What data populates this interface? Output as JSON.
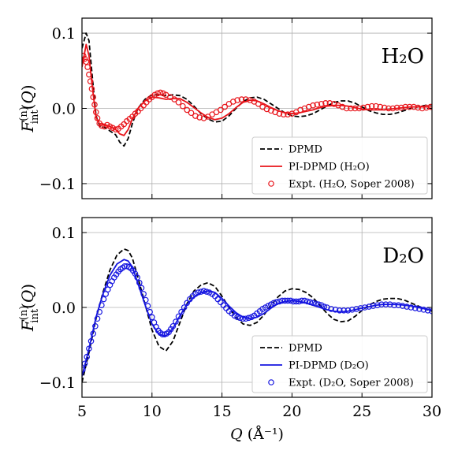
{
  "chart_data": [
    {
      "type": "line",
      "panel_label": "H₂O",
      "ylabel": "F_int^(n)(Q)",
      "xlabel": "",
      "xlim": [
        5,
        30
      ],
      "ylim": [
        -0.12,
        0.12
      ],
      "xticks": [
        "5",
        "10",
        "15",
        "20",
        "25",
        "30"
      ],
      "yticks": [
        "0.1",
        "0.0",
        "−0.1"
      ],
      "grid": true,
      "legend_position": "lower-right",
      "colors": {
        "sim": "#e8141a",
        "dpmd": "#000000"
      },
      "series": [
        {
          "name": "DPMD",
          "style": "dashed",
          "x": [
            5.0,
            5.3,
            5.5,
            5.7,
            6.0,
            6.3,
            6.6,
            7.0,
            7.4,
            7.7,
            8.0,
            8.3,
            8.6,
            9.0,
            9.5,
            10.0,
            10.5,
            11.0,
            11.5,
            12.0,
            12.5,
            13.0,
            13.5,
            14.0,
            14.5,
            15.0,
            15.5,
            16.0,
            16.5,
            17.0,
            17.5,
            18.0,
            18.5,
            19.0,
            19.5,
            20.0,
            20.5,
            21.0,
            21.5,
            22.0,
            22.5,
            23.0,
            23.5,
            24.0,
            24.5,
            25.0,
            25.5,
            26.0,
            26.5,
            27.0,
            27.5,
            28.0,
            28.5,
            29.0,
            29.5,
            30.0
          ],
          "y": [
            0.08,
            0.1,
            0.09,
            0.05,
            -0.01,
            -0.025,
            -0.025,
            -0.03,
            -0.035,
            -0.045,
            -0.05,
            -0.04,
            -0.02,
            0.0,
            0.012,
            0.018,
            0.018,
            0.017,
            0.018,
            0.017,
            0.012,
            0.003,
            -0.007,
            -0.014,
            -0.018,
            -0.017,
            -0.01,
            0.0,
            0.009,
            0.014,
            0.015,
            0.012,
            0.006,
            0.0,
            -0.006,
            -0.01,
            -0.011,
            -0.01,
            -0.007,
            -0.002,
            0.003,
            0.008,
            0.01,
            0.01,
            0.007,
            0.002,
            -0.003,
            -0.006,
            -0.008,
            -0.008,
            -0.006,
            -0.003,
            0.0,
            0.002,
            0.004,
            0.005
          ]
        },
        {
          "name": "PI-DPMD (H₂O)",
          "style": "solid",
          "x": [
            5.0,
            5.3,
            5.5,
            5.7,
            6.0,
            6.3,
            6.6,
            7.0,
            7.4,
            7.7,
            8.0,
            8.3,
            8.6,
            9.0,
            9.5,
            10.0,
            10.5,
            11.0,
            11.5,
            12.0,
            12.5,
            13.0,
            13.5,
            14.0,
            14.5,
            15.0,
            15.5,
            16.0,
            16.5,
            17.0,
            17.5,
            18.0,
            18.5,
            19.0,
            19.5,
            20.0,
            20.5,
            21.0,
            21.5,
            22.0,
            22.5,
            23.0,
            23.5,
            24.0,
            24.5,
            25.0,
            25.5,
            26.0,
            26.5,
            27.0,
            27.5,
            28.0,
            28.5,
            29.0,
            29.5,
            30.0
          ],
          "y": [
            0.055,
            0.085,
            0.07,
            0.035,
            -0.012,
            -0.022,
            -0.022,
            -0.024,
            -0.028,
            -0.034,
            -0.036,
            -0.028,
            -0.014,
            0.0,
            0.01,
            0.015,
            0.014,
            0.012,
            0.013,
            0.013,
            0.008,
            0.001,
            -0.006,
            -0.012,
            -0.015,
            -0.013,
            -0.007,
            0.001,
            0.008,
            0.011,
            0.01,
            0.006,
            0.001,
            -0.003,
            -0.006,
            -0.007,
            -0.006,
            -0.004,
            -0.002,
            0.001,
            0.003,
            0.004,
            0.004,
            0.003,
            0.001,
            -0.001,
            -0.002,
            -0.002,
            -0.002,
            -0.001,
            0.0,
            0.001,
            0.002,
            0.002,
            0.002,
            0.002
          ]
        },
        {
          "name": "Expt. (H₂O, Soper 2008)",
          "style": "circles",
          "x": [
            5.1,
            5.2,
            5.3,
            5.4,
            5.5,
            5.6,
            5.7,
            5.8,
            5.9,
            6.0,
            6.1,
            6.25,
            6.4,
            6.6,
            6.8,
            7.0,
            7.2,
            7.4,
            7.6,
            7.8,
            8.0,
            8.2,
            8.4,
            8.6,
            8.8,
            9.0,
            9.2,
            9.4,
            9.6,
            9.8,
            10.0,
            10.2,
            10.4,
            10.6,
            10.8,
            11.0,
            11.3,
            11.6,
            11.9,
            12.2,
            12.5,
            12.8,
            13.1,
            13.4,
            13.7,
            14.0,
            14.3,
            14.6,
            14.9,
            15.2,
            15.5,
            15.8,
            16.1,
            16.4,
            16.7,
            17.0,
            17.3,
            17.6,
            17.9,
            18.2,
            18.5,
            18.8,
            19.1,
            19.4,
            19.7,
            20.0,
            20.3,
            20.6,
            20.9,
            21.2,
            21.5,
            21.8,
            22.1,
            22.4,
            22.7,
            23.0,
            23.3,
            23.6,
            23.9,
            24.2,
            24.5,
            24.8,
            25.1,
            25.4,
            25.7,
            26.0,
            26.3,
            26.6,
            26.9,
            27.2,
            27.5,
            27.8,
            28.1,
            28.4,
            28.7,
            29.0,
            29.3,
            29.6,
            29.9
          ],
          "y": [
            0.07,
            0.066,
            0.062,
            0.055,
            0.045,
            0.036,
            0.026,
            0.015,
            0.005,
            -0.005,
            -0.013,
            -0.02,
            -0.023,
            -0.024,
            -0.022,
            -0.024,
            -0.026,
            -0.028,
            -0.027,
            -0.024,
            -0.021,
            -0.017,
            -0.014,
            -0.011,
            -0.007,
            -0.004,
            0.0,
            0.004,
            0.008,
            0.012,
            0.015,
            0.018,
            0.02,
            0.021,
            0.02,
            0.018,
            0.015,
            0.012,
            0.008,
            0.003,
            -0.002,
            -0.006,
            -0.01,
            -0.012,
            -0.013,
            -0.011,
            -0.008,
            -0.005,
            -0.002,
            0.002,
            0.006,
            0.009,
            0.011,
            0.012,
            0.012,
            0.011,
            0.009,
            0.006,
            0.002,
            -0.001,
            -0.003,
            -0.005,
            -0.007,
            -0.008,
            -0.008,
            -0.007,
            -0.005,
            -0.002,
            0.0,
            0.002,
            0.004,
            0.005,
            0.006,
            0.007,
            0.007,
            0.006,
            0.004,
            0.002,
            0.0,
            0.0,
            0.0,
            0.0,
            0.001,
            0.002,
            0.003,
            0.003,
            0.002,
            0.001,
            0.0,
            0.0,
            0.001,
            0.001,
            0.002,
            0.002,
            0.002,
            0.001,
            0.0,
            0.001,
            0.002
          ]
        }
      ]
    },
    {
      "type": "line",
      "panel_label": "D₂O",
      "ylabel": "F_int^(n)(Q)",
      "xlabel": "Q (Å⁻¹)",
      "xlim": [
        5,
        30
      ],
      "ylim": [
        -0.12,
        0.12
      ],
      "xticks": [
        "5",
        "10",
        "15",
        "20",
        "25",
        "30"
      ],
      "yticks": [
        "0.1",
        "0.0",
        "−0.1"
      ],
      "grid": true,
      "legend_position": "lower-right",
      "colors": {
        "sim": "#1616e0",
        "dpmd": "#000000"
      },
      "series": [
        {
          "name": "DPMD",
          "style": "dashed",
          "x": [
            5.0,
            5.5,
            6.0,
            6.5,
            7.0,
            7.5,
            8.0,
            8.3,
            8.6,
            9.0,
            9.5,
            10.0,
            10.5,
            11.0,
            11.5,
            12.0,
            12.5,
            13.0,
            13.5,
            14.0,
            14.5,
            15.0,
            15.5,
            16.0,
            16.5,
            17.0,
            17.5,
            18.0,
            18.5,
            19.0,
            19.5,
            20.0,
            20.5,
            21.0,
            21.5,
            22.0,
            22.5,
            23.0,
            23.5,
            24.0,
            24.5,
            25.0,
            25.5,
            26.0,
            26.5,
            27.0,
            27.5,
            28.0,
            28.5,
            29.0,
            29.5,
            30.0
          ],
          "y": [
            -0.1,
            -0.06,
            -0.015,
            0.02,
            0.05,
            0.07,
            0.078,
            0.076,
            0.066,
            0.04,
            0.005,
            -0.03,
            -0.052,
            -0.058,
            -0.045,
            -0.02,
            0.005,
            0.022,
            0.03,
            0.033,
            0.028,
            0.015,
            0.0,
            -0.013,
            -0.022,
            -0.024,
            -0.02,
            -0.01,
            0.003,
            0.014,
            0.022,
            0.025,
            0.024,
            0.02,
            0.013,
            0.003,
            -0.008,
            -0.016,
            -0.019,
            -0.018,
            -0.012,
            -0.004,
            0.003,
            0.008,
            0.011,
            0.012,
            0.012,
            0.01,
            0.006,
            0.002,
            -0.002,
            -0.005
          ]
        },
        {
          "name": "PI-DPMD (D₂O)",
          "style": "solid",
          "x": [
            5.0,
            5.5,
            6.0,
            6.5,
            7.0,
            7.5,
            8.0,
            8.3,
            8.6,
            9.0,
            9.5,
            10.0,
            10.5,
            11.0,
            11.5,
            12.0,
            12.5,
            13.0,
            13.5,
            14.0,
            14.5,
            15.0,
            15.5,
            16.0,
            16.5,
            17.0,
            17.5,
            18.0,
            18.5,
            19.0,
            19.5,
            20.0,
            20.5,
            21.0,
            21.5,
            22.0,
            22.5,
            23.0,
            23.5,
            24.0,
            24.5,
            25.0,
            25.5,
            26.0,
            26.5,
            27.0,
            27.5,
            28.0,
            28.5,
            29.0,
            29.5,
            30.0
          ],
          "y": [
            -0.092,
            -0.055,
            -0.013,
            0.018,
            0.043,
            0.058,
            0.064,
            0.062,
            0.054,
            0.032,
            0.004,
            -0.022,
            -0.036,
            -0.038,
            -0.028,
            -0.011,
            0.004,
            0.014,
            0.02,
            0.022,
            0.02,
            0.012,
            0.002,
            -0.007,
            -0.013,
            -0.015,
            -0.013,
            -0.008,
            -0.001,
            0.005,
            0.008,
            0.009,
            0.008,
            0.006,
            0.003,
            0.0,
            -0.003,
            -0.005,
            -0.006,
            -0.005,
            -0.003,
            -0.001,
            0.001,
            0.003,
            0.004,
            0.004,
            0.004,
            0.003,
            0.002,
            0.0,
            -0.002,
            -0.004
          ]
        },
        {
          "name": "Expt. (D₂O, Soper 2008)",
          "style": "circles",
          "x": [
            5.05,
            5.2,
            5.35,
            5.5,
            5.65,
            5.8,
            5.95,
            6.1,
            6.25,
            6.4,
            6.55,
            6.7,
            6.85,
            7.0,
            7.15,
            7.3,
            7.45,
            7.6,
            7.75,
            7.9,
            8.05,
            8.2,
            8.35,
            8.5,
            8.65,
            8.8,
            8.95,
            9.1,
            9.25,
            9.4,
            9.55,
            9.7,
            9.85,
            10.0,
            10.15,
            10.3,
            10.45,
            10.6,
            10.75,
            10.9,
            11.05,
            11.2,
            11.35,
            11.5,
            11.7,
            11.9,
            12.1,
            12.3,
            12.5,
            12.7,
            12.9,
            13.1,
            13.3,
            13.5,
            13.7,
            13.9,
            14.1,
            14.3,
            14.5,
            14.7,
            14.9,
            15.1,
            15.3,
            15.5,
            15.7,
            15.9,
            16.1,
            16.3,
            16.5,
            16.7,
            16.9,
            17.1,
            17.3,
            17.5,
            17.7,
            17.9,
            18.1,
            18.3,
            18.5,
            18.7,
            18.9,
            19.1,
            19.3,
            19.5,
            19.7,
            19.9,
            20.1,
            20.3,
            20.5,
            20.7,
            20.9,
            21.1,
            21.3,
            21.5,
            21.7,
            21.9,
            22.1,
            22.3,
            22.5,
            22.8,
            23.1,
            23.4,
            23.7,
            24.0,
            24.3,
            24.6,
            24.9,
            25.2,
            25.5,
            25.8,
            26.1,
            26.4,
            26.7,
            27.0,
            27.3,
            27.6,
            27.9,
            28.2,
            28.5,
            28.8,
            29.1,
            29.4,
            29.7,
            30.0
          ],
          "y": [
            -0.083,
            -0.075,
            -0.066,
            -0.055,
            -0.045,
            -0.035,
            -0.025,
            -0.015,
            -0.006,
            0.003,
            0.011,
            0.018,
            0.024,
            0.03,
            0.035,
            0.04,
            0.044,
            0.048,
            0.051,
            0.053,
            0.055,
            0.055,
            0.054,
            0.052,
            0.049,
            0.045,
            0.04,
            0.033,
            0.026,
            0.018,
            0.01,
            0.002,
            -0.006,
            -0.013,
            -0.02,
            -0.026,
            -0.031,
            -0.034,
            -0.036,
            -0.036,
            -0.035,
            -0.033,
            -0.029,
            -0.025,
            -0.019,
            -0.012,
            -0.006,
            0.0,
            0.006,
            0.011,
            0.015,
            0.018,
            0.02,
            0.021,
            0.022,
            0.021,
            0.02,
            0.018,
            0.015,
            0.011,
            0.007,
            0.003,
            -0.001,
            -0.005,
            -0.008,
            -0.011,
            -0.013,
            -0.014,
            -0.015,
            -0.015,
            -0.014,
            -0.013,
            -0.011,
            -0.008,
            -0.005,
            -0.002,
            0.0,
            0.002,
            0.004,
            0.006,
            0.007,
            0.008,
            0.009,
            0.009,
            0.009,
            0.009,
            0.008,
            0.008,
            0.008,
            0.009,
            0.009,
            0.008,
            0.007,
            0.006,
            0.005,
            0.004,
            0.003,
            0.001,
            0.0,
            -0.002,
            -0.003,
            -0.004,
            -0.004,
            -0.004,
            -0.003,
            -0.002,
            -0.001,
            0.0,
            0.001,
            0.002,
            0.003,
            0.004,
            0.004,
            0.004,
            0.003,
            0.003,
            0.002,
            0.001,
            0.0,
            -0.001,
            -0.002,
            -0.003,
            -0.004,
            -0.005
          ]
        }
      ]
    }
  ]
}
